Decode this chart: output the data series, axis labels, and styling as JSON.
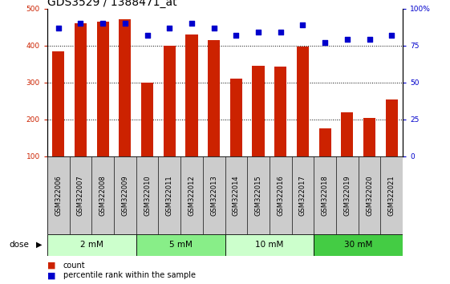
{
  "title": "GDS3529 / 1388471_at",
  "categories": [
    "GSM322006",
    "GSM322007",
    "GSM322008",
    "GSM322009",
    "GSM322010",
    "GSM322011",
    "GSM322012",
    "GSM322013",
    "GSM322014",
    "GSM322015",
    "GSM322016",
    "GSM322017",
    "GSM322018",
    "GSM322019",
    "GSM322020",
    "GSM322021"
  ],
  "bar_values": [
    385,
    460,
    465,
    470,
    300,
    400,
    430,
    415,
    310,
    345,
    343,
    397,
    175,
    218,
    203,
    253
  ],
  "dot_values_pct": [
    87,
    90,
    90,
    90,
    82,
    87,
    90,
    87,
    82,
    84,
    84,
    89,
    77,
    79,
    79,
    82
  ],
  "bar_color": "#cc2200",
  "dot_color": "#0000cc",
  "ylim_left": [
    100,
    500
  ],
  "ylim_right": [
    0,
    100
  ],
  "yticks_left": [
    100,
    200,
    300,
    400,
    500
  ],
  "yticks_right": [
    0,
    25,
    50,
    75,
    100
  ],
  "ylabel_right_labels": [
    "0",
    "25",
    "50",
    "75",
    "100%"
  ],
  "dose_groups": [
    {
      "label": "2 mM",
      "start": 0,
      "end": 4,
      "color": "#ccffcc"
    },
    {
      "label": "5 mM",
      "start": 4,
      "end": 8,
      "color": "#88ee88"
    },
    {
      "label": "10 mM",
      "start": 8,
      "end": 12,
      "color": "#ccffcc"
    },
    {
      "label": "30 mM",
      "start": 12,
      "end": 16,
      "color": "#44cc44"
    }
  ],
  "dose_label": "dose",
  "legend_count_label": "count",
  "legend_pct_label": "percentile rank within the sample",
  "bg_color": "#ffffff",
  "bar_width": 0.55,
  "title_fontsize": 10,
  "tick_fontsize": 6.5,
  "xtick_bg_color": "#cccccc",
  "grid_yticks": [
    200,
    300,
    400
  ],
  "left_axis_color": "#cc2200",
  "right_axis_color": "#0000cc"
}
